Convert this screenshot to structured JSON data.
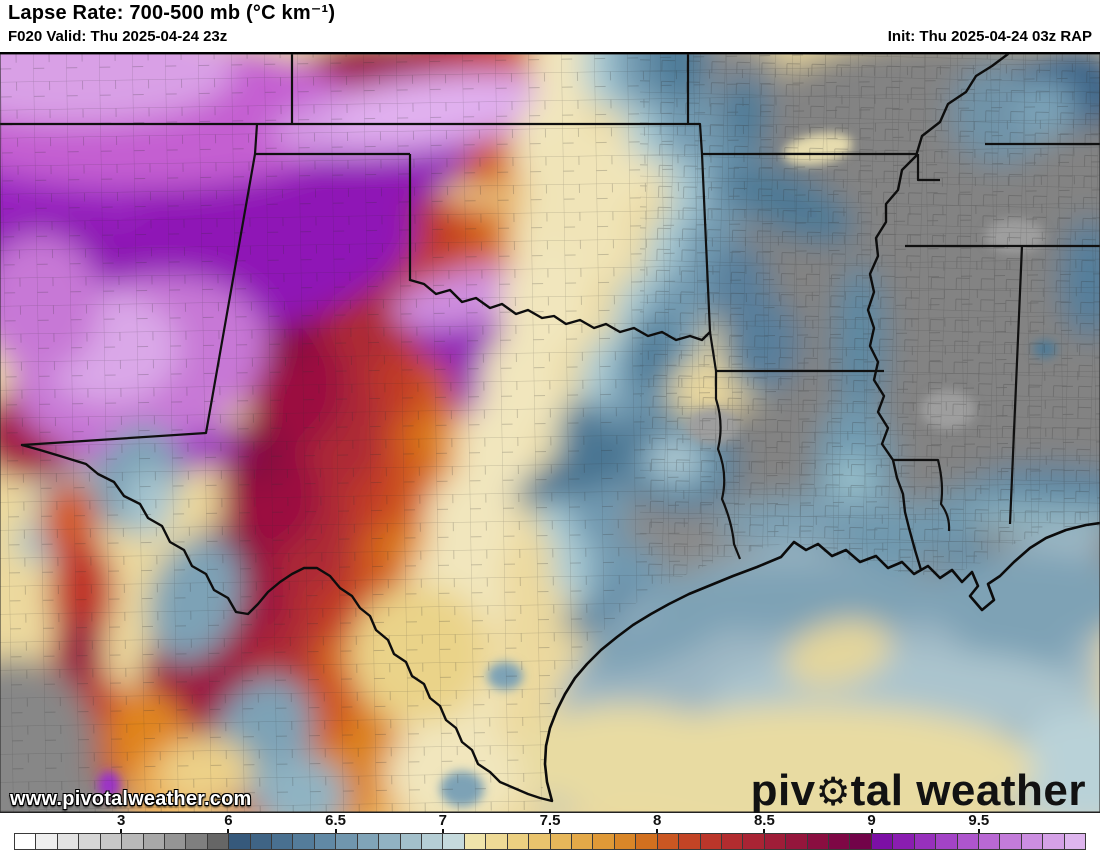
{
  "header": {
    "title": "Lapse Rate: 700-500 mb (°C km⁻¹)",
    "valid": "F020 Valid: Thu 2025-04-24 23z",
    "init": "Init: Thu 2025-04-24 03z RAP"
  },
  "map": {
    "watermark": "www.pivotalweather.com",
    "logo": {
      "pre": "piv",
      "gear": "⚙",
      "post": "tal weather"
    }
  },
  "colorbar": {
    "units": "°C km⁻¹",
    "ticks": [
      {
        "label": "3",
        "pos": 10
      },
      {
        "label": "6",
        "pos": 20
      },
      {
        "label": "6.5",
        "pos": 30
      },
      {
        "label": "7",
        "pos": 40
      },
      {
        "label": "7.5",
        "pos": 50
      },
      {
        "label": "8",
        "pos": 60
      },
      {
        "label": "8.5",
        "pos": 70
      },
      {
        "label": "9",
        "pos": 80
      },
      {
        "label": "9.5",
        "pos": 90
      }
    ],
    "cells": [
      "#ffffff",
      "#efefef",
      "#e3e3e3",
      "#d6d6d6",
      "#c8c8c8",
      "#b9b9b9",
      "#a8a8a8",
      "#959595",
      "#7f7f7f",
      "#666666",
      "#36597b",
      "#3f6485",
      "#497090",
      "#547c9a",
      "#6189a5",
      "#7096ae",
      "#80a4b8",
      "#91b2c2",
      "#a3c0cb",
      "#b5ced5",
      "#c5dadd",
      "#efe4ab",
      "#eeda96",
      "#ecd081",
      "#eac46d",
      "#e7b75a",
      "#e4a948",
      "#df9937",
      "#d98628",
      "#d2701f",
      "#cb5722",
      "#c34425",
      "#bb362a",
      "#b22c2f",
      "#a92434",
      "#9f1d38",
      "#95163c",
      "#8a0e40",
      "#7e0745",
      "#720349",
      "#7c0fa5",
      "#8a1db1",
      "#9730bc",
      "#a343c6",
      "#ae55cd",
      "#b968d4",
      "#c37bda",
      "#cc8ee1",
      "#d5a1e7",
      "#deb5ee"
    ]
  }
}
